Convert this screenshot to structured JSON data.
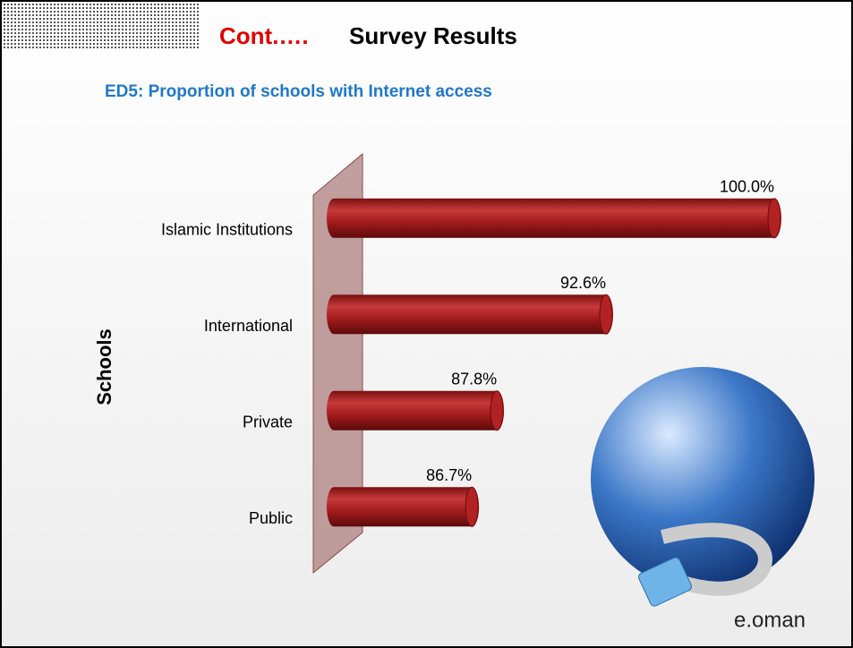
{
  "chart_data": {
    "type": "bar",
    "orientation": "horizontal",
    "title": "Cont.….",
    "title_suffix": "Survey Results",
    "subtitle": "ED5: Proportion of schools with Internet access",
    "y_label": "Schools",
    "categories": [
      "Islamic Institutions",
      "International",
      "Private",
      "Public"
    ],
    "values": [
      100,
      92.6,
      87.8,
      86.7
    ],
    "value_labels": [
      "100.0%",
      "92.6%",
      "87.8%",
      "86.7%"
    ],
    "color": "#b22222",
    "xlim": [
      80,
      100
    ],
    "logo": "e.oman"
  }
}
